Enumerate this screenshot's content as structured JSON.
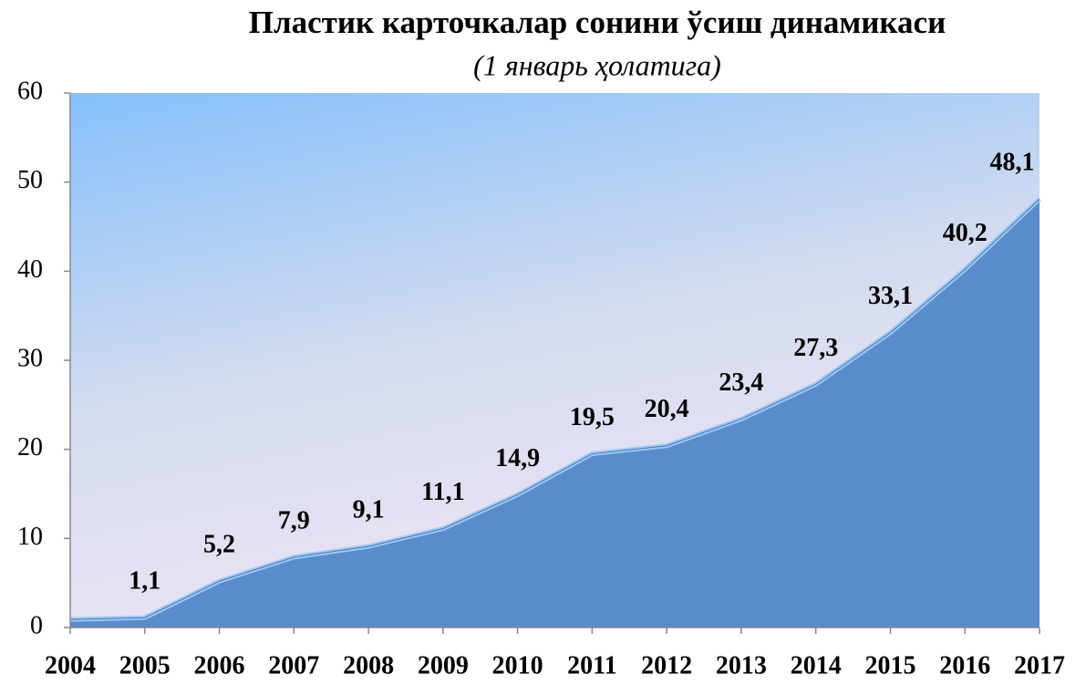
{
  "chart_data": {
    "type": "area",
    "title": "Пластик карточкалар сонини ўсиш динамикаси",
    "subtitle": "(1 январь ҳолатига)",
    "categories": [
      "2004",
      "2005",
      "2006",
      "2007",
      "2008",
      "2009",
      "2010",
      "2011",
      "2012",
      "2013",
      "2014",
      "2015",
      "2016",
      "2017"
    ],
    "values": [
      0.9,
      1.1,
      5.2,
      7.9,
      9.1,
      11.1,
      14.9,
      19.5,
      20.4,
      23.4,
      27.3,
      33.1,
      40.2,
      48.1
    ],
    "value_labels": [
      null,
      "1,1",
      "5,2",
      "7,9",
      "9,1",
      "11,1",
      "14,9",
      "19,5",
      "20,4",
      "23,4",
      "27,3",
      "33,1",
      "40,2",
      "48,1"
    ],
    "color": "#5a8bcb",
    "ylim": [
      0,
      60
    ],
    "yticks": [
      0,
      10,
      20,
      30,
      40,
      50,
      60
    ]
  }
}
